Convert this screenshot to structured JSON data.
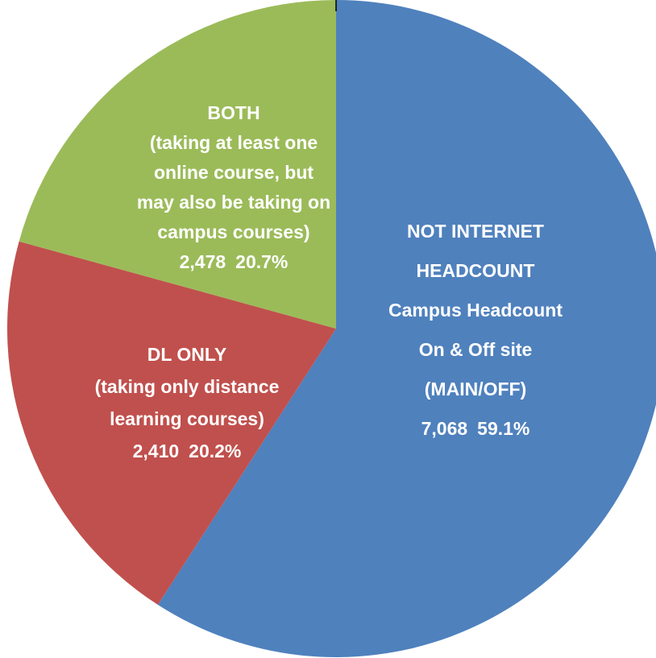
{
  "chart_data": {
    "type": "pie",
    "categories": [
      "NOT INTERNET\nHEADCOUNT\nCampus Headcount\nOn & Off site\n(MAIN/OFF)",
      "DL ONLY\n(taking only distance\nlearning courses)",
      "BOTH\n(taking at least one\nonline course, but\nmay also be taking on\ncampus courses)"
    ],
    "values": [
      7068,
      2410,
      2478
    ],
    "value_labels": [
      "7,068",
      "2,410",
      "2,478"
    ],
    "percents": [
      59.1,
      20.2,
      20.7
    ],
    "percent_labels": [
      "59.1%",
      "20.2%",
      "20.7%"
    ],
    "colors": [
      "#4f81bd",
      "#c0504d",
      "#9bbb59"
    ]
  }
}
